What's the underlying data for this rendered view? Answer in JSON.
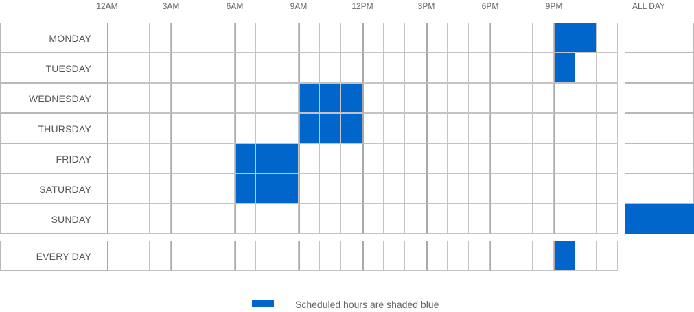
{
  "header": {
    "hours": [
      "12AM",
      "3AM",
      "6AM",
      "9AM",
      "12PM",
      "3PM",
      "6PM",
      "9PM"
    ],
    "all_day_label": "ALL DAY"
  },
  "rows": [
    {
      "day": "MONDAY",
      "scheduled_hours": [
        21,
        22
      ],
      "all_day": false
    },
    {
      "day": "TUESDAY",
      "scheduled_hours": [
        21
      ],
      "all_day": false
    },
    {
      "day": "WEDNESDAY",
      "scheduled_hours": [
        9,
        10,
        11
      ],
      "all_day": false
    },
    {
      "day": "THURSDAY",
      "scheduled_hours": [
        9,
        10,
        11
      ],
      "all_day": false
    },
    {
      "day": "FRIDAY",
      "scheduled_hours": [
        6,
        7,
        8
      ],
      "all_day": false
    },
    {
      "day": "SATURDAY",
      "scheduled_hours": [
        6,
        7,
        8
      ],
      "all_day": false
    },
    {
      "day": "SUNDAY",
      "scheduled_hours": [],
      "all_day": true
    }
  ],
  "every_day": {
    "day": "EVERY DAY",
    "scheduled_hours": [
      21
    ]
  },
  "legend": {
    "text": "Scheduled hours are shaded blue",
    "color": "#0066cc"
  }
}
